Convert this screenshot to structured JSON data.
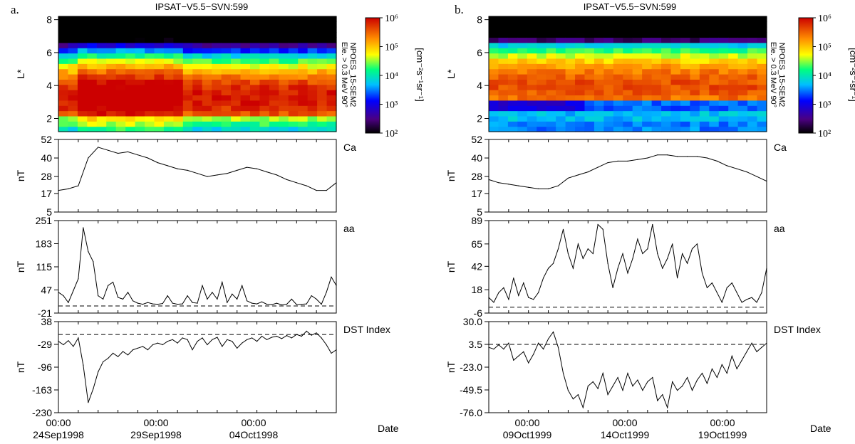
{
  "figure": {
    "panels": [
      {
        "label": "a.",
        "title": "IPSAT−V5.5−SVN:599",
        "spectrogram": {
          "ylabel": "L*",
          "yticks": [
            "2",
            "4",
            "6",
            "8"
          ],
          "cbar_title": "NPOES_15-SEM2",
          "cbar_sub": "Ele. > 0.3 MeV 90°",
          "cbar_units": "[cm⁻²s⁻¹sr⁻¹]",
          "cbar_ticks": [
            "10⁶",
            "10⁵",
            "10⁴",
            "10³",
            "10²"
          ]
        },
        "date_label": "Date",
        "xticks": [
          {
            "time": "00:00",
            "date": "24Sep1998"
          },
          {
            "time": "00:00",
            "date": "29Sep1998"
          },
          {
            "time": "00:00",
            "date": "04Oct1998"
          }
        ]
      },
      {
        "label": "b.",
        "title": "IPSAT−V5.5−SVN:599",
        "spectrogram": {
          "ylabel": "L*",
          "yticks": [
            "2",
            "4",
            "6",
            "8"
          ],
          "cbar_title": "NPOES_15-SEM2",
          "cbar_sub": "Ele. > 0.3 MeV 90°",
          "cbar_units": "[cm⁻²s⁻¹sr⁻¹]",
          "cbar_ticks": [
            "10⁶",
            "10⁵",
            "10⁴",
            "10³",
            "10²"
          ]
        },
        "date_label": "Date",
        "xticks": [
          {
            "time": "00:00",
            "date": "09Oct1999"
          },
          {
            "time": "00:00",
            "date": "14Oct1999"
          },
          {
            "time": "00:00",
            "date": "19Oct1999"
          }
        ]
      }
    ]
  },
  "chart_data": [
    {
      "type": "heatmap",
      "panel": "a",
      "title": "IPSAT−V5.5−SVN:599",
      "ylabel": "L*",
      "ylim": [
        1.2,
        8.2
      ],
      "colorbar": {
        "label": "NPOES_15-SEM2 Ele. > 0.3 MeV 90°",
        "units": "cm-2 s-1 sr-1",
        "range": [
          100,
          1000000
        ],
        "scale": "log"
      },
      "n_time_bins": 29,
      "description_values": {
        "peak_flux_L": 3.3,
        "peak_log10_flux": 5.9
      }
    },
    {
      "type": "line",
      "panel": "a",
      "title": "Ca",
      "ylabel": "nT",
      "ylim": [
        5,
        52
      ],
      "yticks": [
        "52",
        "40",
        "28",
        "17",
        "5"
      ],
      "ytick_values": [
        52,
        40,
        28,
        17,
        5
      ],
      "x_days": [
        0,
        0.5,
        1,
        1.5,
        2,
        2.5,
        3,
        3.5,
        4,
        4.5,
        5,
        5.5,
        6,
        6.5,
        7,
        7.5,
        8,
        8.5,
        9,
        9.5,
        10,
        10.5,
        11,
        11.5,
        12,
        12.5,
        13,
        13.5,
        14
      ],
      "values": [
        19,
        20,
        22,
        40,
        47,
        45,
        43,
        44,
        42,
        40,
        37,
        35,
        33,
        32,
        30,
        28,
        29,
        30,
        32,
        34,
        33,
        31,
        29,
        26,
        24,
        22,
        19,
        19,
        24
      ],
      "x_total_days": 14
    },
    {
      "type": "line",
      "panel": "a",
      "title": "aa",
      "ylabel": "nT",
      "ylim": [
        -21,
        251
      ],
      "yticks": [
        "251",
        "183",
        "115",
        "47",
        "-21"
      ],
      "ytick_values": [
        251,
        183,
        115,
        47,
        -21
      ],
      "reference_line": 0,
      "x_days": [
        0,
        0.25,
        0.5,
        0.75,
        1,
        1.25,
        1.5,
        1.75,
        2,
        2.25,
        2.5,
        2.75,
        3,
        3.25,
        3.5,
        3.75,
        4,
        4.25,
        4.5,
        4.75,
        5,
        5.25,
        5.5,
        5.75,
        6,
        6.25,
        6.5,
        6.75,
        7,
        7.25,
        7.5,
        7.75,
        8,
        8.25,
        8.5,
        8.75,
        9,
        9.25,
        9.5,
        9.75,
        10,
        10.25,
        10.5,
        10.75,
        11,
        11.25,
        11.5,
        11.75,
        12,
        12.25,
        12.5,
        12.75,
        13,
        13.25,
        13.5,
        13.75,
        14
      ],
      "values": [
        40,
        30,
        10,
        45,
        80,
        230,
        160,
        130,
        30,
        20,
        60,
        70,
        25,
        20,
        40,
        15,
        8,
        5,
        10,
        6,
        5,
        7,
        30,
        8,
        5,
        6,
        30,
        10,
        8,
        60,
        20,
        40,
        20,
        70,
        10,
        35,
        20,
        60,
        15,
        8,
        6,
        12,
        5,
        4,
        8,
        3,
        5,
        20,
        4,
        5,
        6,
        30,
        20,
        5,
        40,
        85,
        60
      ],
      "x_total_days": 14
    },
    {
      "type": "line",
      "panel": "a",
      "title": "DST Index",
      "ylabel": "nT",
      "ylim": [
        -230,
        38
      ],
      "yticks": [
        "38",
        "-29",
        "-96",
        "-163",
        "-230"
      ],
      "ytick_values": [
        38,
        -29,
        -96,
        -163,
        -230
      ],
      "reference_line": 0,
      "x_days": [
        0,
        0.25,
        0.5,
        0.75,
        1,
        1.25,
        1.5,
        1.75,
        2,
        2.25,
        2.5,
        2.75,
        3,
        3.25,
        3.5,
        3.75,
        4,
        4.25,
        4.5,
        4.75,
        5,
        5.25,
        5.5,
        5.75,
        6,
        6.25,
        6.5,
        6.75,
        7,
        7.25,
        7.5,
        7.75,
        8,
        8.25,
        8.5,
        8.75,
        9,
        9.25,
        9.5,
        9.75,
        10,
        10.25,
        10.5,
        10.75,
        11,
        11.25,
        11.5,
        11.75,
        12,
        12.25,
        12.5,
        12.75,
        13,
        13.25,
        13.5,
        13.75,
        14
      ],
      "values": [
        -20,
        -30,
        -18,
        -35,
        -10,
        -90,
        -200,
        -160,
        -110,
        -80,
        -70,
        -55,
        -65,
        -50,
        -60,
        -45,
        -40,
        -35,
        -45,
        -30,
        -25,
        -30,
        -20,
        -15,
        -25,
        -10,
        -15,
        -45,
        -20,
        -10,
        -30,
        -15,
        -8,
        -35,
        -15,
        -20,
        -40,
        -25,
        -15,
        -10,
        -20,
        -5,
        -15,
        -8,
        -5,
        -12,
        -3,
        -10,
        0,
        -5,
        10,
        -2,
        5,
        -10,
        -30,
        -55,
        -45
      ],
      "x_total_days": 14
    },
    {
      "type": "heatmap",
      "panel": "b",
      "title": "IPSAT−V5.5−SVN:599",
      "ylabel": "L*",
      "ylim": [
        1.2,
        8.2
      ],
      "colorbar": {
        "label": "NPOES_15-SEM2 Ele. > 0.3 MeV 90°",
        "units": "cm-2 s-1 sr-1",
        "range": [
          100,
          1000000
        ],
        "scale": "log"
      },
      "n_time_bins": 29,
      "description_values": {
        "peak_flux_L": 4.0,
        "peak_log10_flux": 5.6
      }
    },
    {
      "type": "line",
      "panel": "b",
      "title": "Ca",
      "ylabel": "nT",
      "ylim": [
        5,
        52
      ],
      "yticks": [
        "52",
        "40",
        "28",
        "17",
        "5"
      ],
      "ytick_values": [
        52,
        40,
        28,
        17,
        5
      ],
      "x_days": [
        0,
        0.5,
        1,
        1.5,
        2,
        2.5,
        3,
        3.5,
        4,
        4.5,
        5,
        5.5,
        6,
        6.5,
        7,
        7.5,
        8,
        8.5,
        9,
        9.5,
        10,
        10.5,
        11,
        11.5,
        12,
        12.5,
        13,
        13.5,
        14
      ],
      "values": [
        26,
        24,
        23,
        22,
        21,
        20,
        20,
        22,
        27,
        29,
        31,
        34,
        37,
        38,
        38,
        39,
        40,
        42,
        42,
        41,
        41,
        41,
        40,
        38,
        35,
        33,
        31,
        28,
        25
      ],
      "x_total_days": 14
    },
    {
      "type": "line",
      "panel": "b",
      "title": "aa",
      "ylabel": "nT",
      "ylim": [
        -6,
        89
      ],
      "yticks": [
        "89",
        "65",
        "42",
        "18",
        "-6"
      ],
      "ytick_values": [
        89,
        65,
        42,
        18,
        -6
      ],
      "reference_line": 0,
      "x_days": [
        0,
        0.25,
        0.5,
        0.75,
        1,
        1.25,
        1.5,
        1.75,
        2,
        2.25,
        2.5,
        2.75,
        3,
        3.25,
        3.5,
        3.75,
        4,
        4.25,
        4.5,
        4.75,
        5,
        5.25,
        5.5,
        5.75,
        6,
        6.25,
        6.5,
        6.75,
        7,
        7.25,
        7.5,
        7.75,
        8,
        8.25,
        8.5,
        8.75,
        9,
        9.25,
        9.5,
        9.75,
        10,
        10.25,
        10.5,
        10.75,
        11,
        11.25,
        11.5,
        11.75,
        12,
        12.25,
        12.5,
        12.75,
        13,
        13.25,
        13.5,
        13.75,
        14
      ],
      "values": [
        10,
        5,
        15,
        20,
        8,
        30,
        12,
        25,
        10,
        8,
        15,
        30,
        40,
        45,
        60,
        80,
        55,
        40,
        65,
        50,
        60,
        55,
        85,
        80,
        45,
        20,
        40,
        55,
        35,
        50,
        70,
        55,
        60,
        85,
        55,
        40,
        50,
        65,
        30,
        55,
        45,
        60,
        65,
        35,
        20,
        25,
        15,
        5,
        20,
        25,
        15,
        5,
        8,
        10,
        5,
        15,
        40
      ],
      "x_total_days": 14
    },
    {
      "type": "line",
      "panel": "b",
      "title": "DST Index",
      "ylabel": "nT",
      "ylim": [
        -76,
        30
      ],
      "yticks": [
        "30.0",
        "3.5",
        "-23.0",
        "-49.5",
        "-76.0"
      ],
      "ytick_values": [
        30,
        3.5,
        -23,
        -49.5,
        -76
      ],
      "reference_line": 3.5,
      "x_days": [
        0,
        0.25,
        0.5,
        0.75,
        1,
        1.25,
        1.5,
        1.75,
        2,
        2.25,
        2.5,
        2.75,
        3,
        3.25,
        3.5,
        3.75,
        4,
        4.25,
        4.5,
        4.75,
        5,
        5.25,
        5.5,
        5.75,
        6,
        6.25,
        6.5,
        6.75,
        7,
        7.25,
        7.5,
        7.75,
        8,
        8.25,
        8.5,
        8.75,
        9,
        9.25,
        9.5,
        9.75,
        10,
        10.25,
        10.5,
        10.75,
        11,
        11.25,
        11.5,
        11.75,
        12,
        12.25,
        12.5,
        12.75,
        13,
        13.25,
        13.5,
        13.75,
        14
      ],
      "values": [
        0,
        -2,
        3,
        -2,
        5,
        -15,
        -10,
        -5,
        -18,
        -8,
        5,
        -2,
        10,
        18,
        0,
        -30,
        -50,
        -60,
        -55,
        -70,
        -45,
        -40,
        -48,
        -30,
        -55,
        -45,
        -35,
        -50,
        -30,
        -45,
        -38,
        -50,
        -40,
        -35,
        -62,
        -55,
        -70,
        -40,
        -50,
        -45,
        -35,
        -50,
        -38,
        -30,
        -42,
        -25,
        -35,
        -20,
        -30,
        -10,
        -25,
        -15,
        -5,
        5,
        -5,
        0,
        5
      ],
      "x_total_days": 14
    }
  ]
}
